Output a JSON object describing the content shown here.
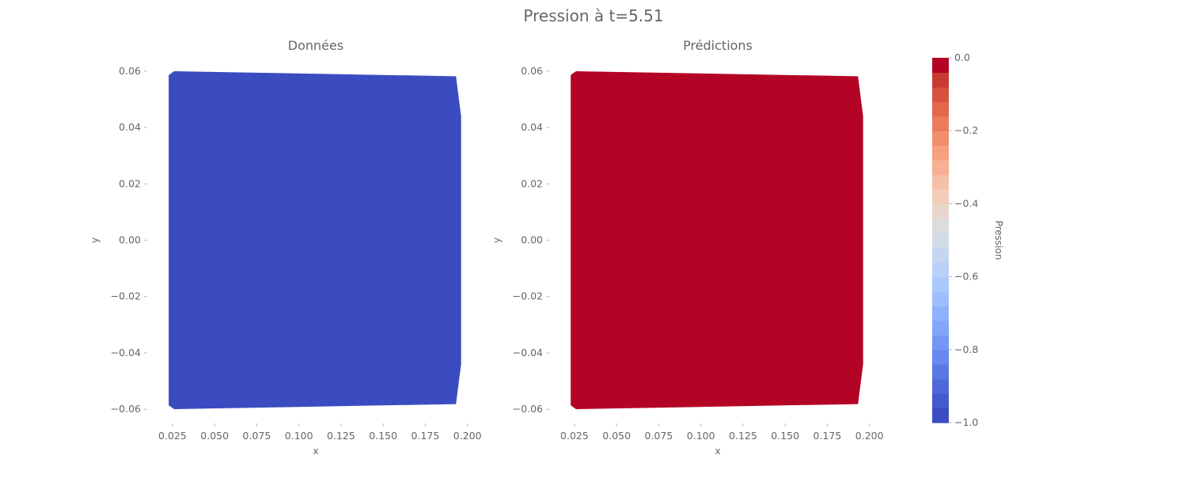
{
  "chart_data": {
    "type": "heatmap",
    "title": "Pression à t=5.51",
    "colormap": "coolwarm",
    "panels": [
      {
        "title": "Données",
        "xlabel": "x",
        "ylabel": "y",
        "xlim": [
          0.01,
          0.21
        ],
        "ylim": [
          -0.065,
          0.065
        ],
        "xticks": [
          0.025,
          0.05,
          0.075,
          0.1,
          0.125,
          0.15,
          0.175,
          0.2
        ],
        "xtick_labels": [
          "0.025",
          "0.050",
          "0.075",
          "0.100",
          "0.125",
          "0.150",
          "0.175",
          "0.200"
        ],
        "yticks": [
          0.06,
          0.04,
          0.02,
          0.0,
          -0.02,
          -0.04,
          -0.06
        ],
        "ytick_labels": [
          "0.06",
          "0.04",
          "0.02",
          "0.00",
          "−0.02",
          "−0.04",
          "−0.06"
        ],
        "value": -1.0,
        "fill_color": "#3b4cc0",
        "domain": [
          [
            0.023,
            0.0585
          ],
          [
            0.026,
            0.0598
          ],
          [
            0.193,
            0.058
          ],
          [
            0.196,
            0.044
          ],
          [
            0.196,
            -0.044
          ],
          [
            0.193,
            -0.058
          ],
          [
            0.026,
            -0.0598
          ],
          [
            0.023,
            -0.0585
          ]
        ]
      },
      {
        "title": "Prédictions",
        "xlabel": "x",
        "ylabel": "y",
        "xlim": [
          0.01,
          0.21
        ],
        "ylim": [
          -0.065,
          0.065
        ],
        "xticks": [
          0.025,
          0.05,
          0.075,
          0.1,
          0.125,
          0.15,
          0.175,
          0.2
        ],
        "xtick_labels": [
          "0.025",
          "0.050",
          "0.075",
          "0.100",
          "0.125",
          "0.150",
          "0.175",
          "0.200"
        ],
        "yticks": [
          0.06,
          0.04,
          0.02,
          0.0,
          -0.02,
          -0.04,
          -0.06
        ],
        "ytick_labels": [
          "0.06",
          "0.04",
          "0.02",
          "0.00",
          "−0.02",
          "−0.04",
          "−0.06"
        ],
        "value": 0.0,
        "fill_color": "#b40426",
        "domain": [
          [
            0.023,
            0.0585
          ],
          [
            0.026,
            0.0598
          ],
          [
            0.193,
            0.058
          ],
          [
            0.196,
            0.044
          ],
          [
            0.196,
            -0.044
          ],
          [
            0.193,
            -0.058
          ],
          [
            0.026,
            -0.0598
          ],
          [
            0.023,
            -0.0585
          ]
        ]
      }
    ],
    "colorbar": {
      "label": "Pression",
      "range": [
        -1.0,
        0.0
      ],
      "ticks": [
        0.0,
        -0.2,
        -0.4,
        -0.6,
        -0.8,
        -1.0
      ],
      "tick_labels": [
        "0.0",
        "−0.2",
        "−0.4",
        "−0.6",
        "−0.8",
        "−1.0"
      ],
      "levels": 20,
      "colors": [
        "#3b4cc0",
        "#445acc",
        "#4f69d9",
        "#5a78e4",
        "#6788ee",
        "#7497f5",
        "#82a6fb",
        "#90b2fe",
        "#9ebeff",
        "#abc8fd",
        "#b9d0f9",
        "#c6d6f1",
        "#d2dbe8",
        "#dddcdc",
        "#e8d6cc",
        "#f1cdba",
        "#f5c0a7",
        "#f7b093",
        "#f6a07f",
        "#f28e6c",
        "#ec7b5b",
        "#e2674b",
        "#d6523e",
        "#c83b32",
        "#b40426"
      ]
    }
  }
}
